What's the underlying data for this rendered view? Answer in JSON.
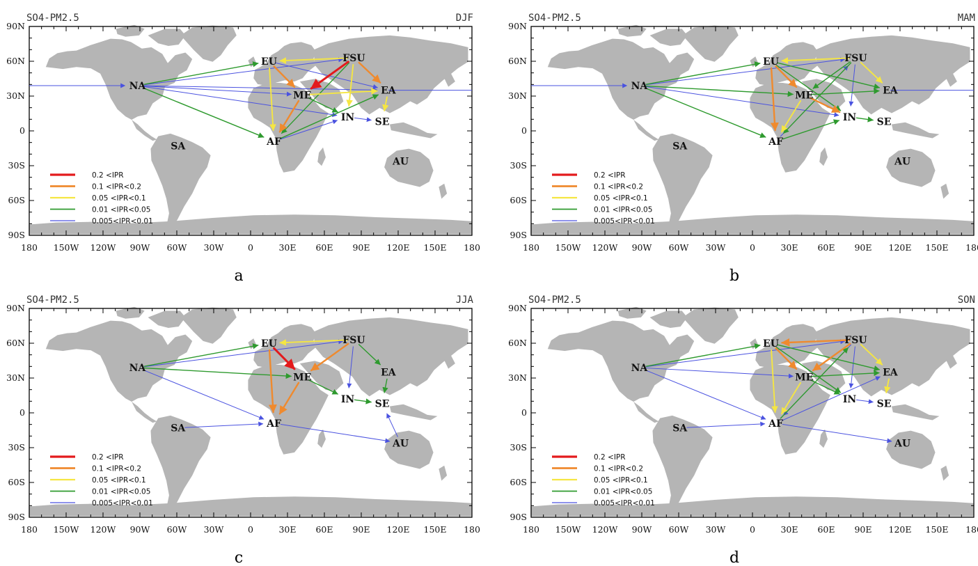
{
  "legend": [
    {
      "label": "0.2   <IPR",
      "color": "#e31a1c",
      "width": 3.0
    },
    {
      "label": "0.1   <IPR<0.2",
      "color": "#ef8a2e",
      "width": 2.4
    },
    {
      "label": "0.05  <IPR<0.1",
      "color": "#f5e642",
      "width": 1.9
    },
    {
      "label": "0.01  <IPR<0.05",
      "color": "#2e9a2e",
      "width": 1.4
    },
    {
      "label": "0.005<IPR<0.01",
      "color": "#4a52e0",
      "width": 1.0
    }
  ],
  "xticks": [
    "180",
    "150W",
    "120W",
    "90W",
    "60W",
    "30W",
    "0",
    "30E",
    "60E",
    "90E",
    "120E",
    "150E",
    "180"
  ],
  "yticks": [
    "90N",
    "60N",
    "30N",
    "0",
    "30S",
    "60S",
    "90S"
  ],
  "regions": [
    {
      "id": "NA",
      "lon": -92,
      "lat": 39
    },
    {
      "id": "SA",
      "lon": -59,
      "lat": -13
    },
    {
      "id": "EU",
      "lon": 15,
      "lat": 60
    },
    {
      "id": "FSU",
      "lon": 84,
      "lat": 63
    },
    {
      "id": "ME",
      "lon": 42,
      "lat": 31
    },
    {
      "id": "AF",
      "lon": 19,
      "lat": -9
    },
    {
      "id": "IN",
      "lon": 79,
      "lat": 12
    },
    {
      "id": "EA",
      "lon": 112,
      "lat": 35
    },
    {
      "id": "SE",
      "lon": 107,
      "lat": 8
    },
    {
      "id": "AU",
      "lon": 122,
      "lat": -26
    }
  ],
  "chart_data": [
    {
      "type": "map",
      "caption": "a",
      "title": "SO4-PM2.5",
      "season": "DJF",
      "flows": [
        {
          "from": "FSU",
          "to": "EU",
          "cls": 2
        },
        {
          "from": "FSU",
          "to": "ME",
          "cls": 0
        },
        {
          "from": "FSU",
          "to": "EA",
          "cls": 1
        },
        {
          "from": "FSU",
          "to": "IN",
          "cls": 2
        },
        {
          "from": "FSU",
          "to": "AF",
          "cls": 3
        },
        {
          "from": "EU",
          "to": "ME",
          "cls": 1
        },
        {
          "from": "EU",
          "to": "AF",
          "cls": 2
        },
        {
          "from": "EU",
          "to": "EA",
          "cls": 4
        },
        {
          "from": "ME",
          "to": "AF",
          "cls": 1
        },
        {
          "from": "ME",
          "to": "EA",
          "cls": 2
        },
        {
          "from": "ME",
          "to": "IN",
          "cls": 3
        },
        {
          "from": "AF",
          "to": "EA",
          "cls": 3
        },
        {
          "from": "AF",
          "to": "IN",
          "cls": 4
        },
        {
          "from": "NA",
          "to": "EU",
          "cls": 3
        },
        {
          "from": "NA",
          "to": "ME",
          "cls": 4
        },
        {
          "from": "NA",
          "to": "AF",
          "cls": 3
        },
        {
          "from": "NA",
          "to": "EA",
          "cls": 4
        },
        {
          "from": "NA",
          "to": "FSU",
          "cls": 4
        },
        {
          "from": "NA",
          "to": "IN",
          "cls": 4
        },
        {
          "from": "EA",
          "to": "SE",
          "cls": 2
        },
        {
          "from": "IN",
          "to": "SE",
          "cls": 4
        },
        {
          "from": "EA",
          "to": "NA",
          "cls": 4,
          "wrap": true
        }
      ]
    },
    {
      "type": "map",
      "caption": "b",
      "title": "SO4-PM2.5",
      "season": "MAM",
      "flows": [
        {
          "from": "FSU",
          "to": "EU",
          "cls": 2
        },
        {
          "from": "FSU",
          "to": "ME",
          "cls": 3
        },
        {
          "from": "FSU",
          "to": "EA",
          "cls": 2
        },
        {
          "from": "FSU",
          "to": "IN",
          "cls": 4
        },
        {
          "from": "FSU",
          "to": "AF",
          "cls": 3
        },
        {
          "from": "EU",
          "to": "ME",
          "cls": 1
        },
        {
          "from": "EU",
          "to": "AF",
          "cls": 1
        },
        {
          "from": "EU",
          "to": "IN",
          "cls": 3
        },
        {
          "from": "EU",
          "to": "EA",
          "cls": 3
        },
        {
          "from": "ME",
          "to": "AF",
          "cls": 2
        },
        {
          "from": "ME",
          "to": "IN",
          "cls": 1
        },
        {
          "from": "ME",
          "to": "EA",
          "cls": 3
        },
        {
          "from": "AF",
          "to": "IN",
          "cls": 3
        },
        {
          "from": "AF",
          "to": "FSU",
          "cls": 4
        },
        {
          "from": "NA",
          "to": "EU",
          "cls": 3
        },
        {
          "from": "NA",
          "to": "ME",
          "cls": 3
        },
        {
          "from": "NA",
          "to": "AF",
          "cls": 3
        },
        {
          "from": "NA",
          "to": "FSU",
          "cls": 4
        },
        {
          "from": "NA",
          "to": "IN",
          "cls": 4
        },
        {
          "from": "IN",
          "to": "SE",
          "cls": 3
        },
        {
          "from": "EA",
          "to": "NA",
          "cls": 4,
          "wrap": true
        }
      ]
    },
    {
      "type": "map",
      "caption": "c",
      "title": "SO4-PM2.5",
      "season": "JJA",
      "flows": [
        {
          "from": "FSU",
          "to": "EU",
          "cls": 2
        },
        {
          "from": "FSU",
          "to": "ME",
          "cls": 1
        },
        {
          "from": "FSU",
          "to": "EA",
          "cls": 3
        },
        {
          "from": "FSU",
          "to": "IN",
          "cls": 4
        },
        {
          "from": "EU",
          "to": "ME",
          "cls": 0
        },
        {
          "from": "EU",
          "to": "AF",
          "cls": 1
        },
        {
          "from": "ME",
          "to": "AF",
          "cls": 1
        },
        {
          "from": "ME",
          "to": "IN",
          "cls": 3
        },
        {
          "from": "IN",
          "to": "SE",
          "cls": 3
        },
        {
          "from": "EA",
          "to": "SE",
          "cls": 3
        },
        {
          "from": "NA",
          "to": "EU",
          "cls": 3
        },
        {
          "from": "NA",
          "to": "ME",
          "cls": 3
        },
        {
          "from": "NA",
          "to": "AF",
          "cls": 4
        },
        {
          "from": "NA",
          "to": "FSU",
          "cls": 4
        },
        {
          "from": "SA",
          "to": "AF",
          "cls": 4
        },
        {
          "from": "AF",
          "to": "AU",
          "cls": 4
        },
        {
          "from": "AU",
          "to": "SE",
          "cls": 4
        }
      ]
    },
    {
      "type": "map",
      "caption": "d",
      "title": "SO4-PM2.5",
      "season": "SON",
      "flows": [
        {
          "from": "FSU",
          "to": "EU",
          "cls": 1
        },
        {
          "from": "FSU",
          "to": "ME",
          "cls": 1
        },
        {
          "from": "FSU",
          "to": "EA",
          "cls": 2
        },
        {
          "from": "FSU",
          "to": "IN",
          "cls": 4
        },
        {
          "from": "FSU",
          "to": "AF",
          "cls": 4
        },
        {
          "from": "EU",
          "to": "ME",
          "cls": 1
        },
        {
          "from": "EU",
          "to": "AF",
          "cls": 2
        },
        {
          "from": "EU",
          "to": "IN",
          "cls": 3
        },
        {
          "from": "EU",
          "to": "EA",
          "cls": 3
        },
        {
          "from": "ME",
          "to": "AF",
          "cls": 2
        },
        {
          "from": "ME",
          "to": "IN",
          "cls": 3
        },
        {
          "from": "ME",
          "to": "EA",
          "cls": 3
        },
        {
          "from": "AF",
          "to": "EA",
          "cls": 4
        },
        {
          "from": "AF",
          "to": "FSU",
          "cls": 3
        },
        {
          "from": "AF",
          "to": "AU",
          "cls": 4
        },
        {
          "from": "NA",
          "to": "EU",
          "cls": 3
        },
        {
          "from": "NA",
          "to": "ME",
          "cls": 4
        },
        {
          "from": "NA",
          "to": "AF",
          "cls": 4
        },
        {
          "from": "NA",
          "to": "FSU",
          "cls": 4
        },
        {
          "from": "SA",
          "to": "AF",
          "cls": 4
        },
        {
          "from": "EA",
          "to": "SE",
          "cls": 2
        },
        {
          "from": "IN",
          "to": "SE",
          "cls": 4
        }
      ]
    }
  ]
}
